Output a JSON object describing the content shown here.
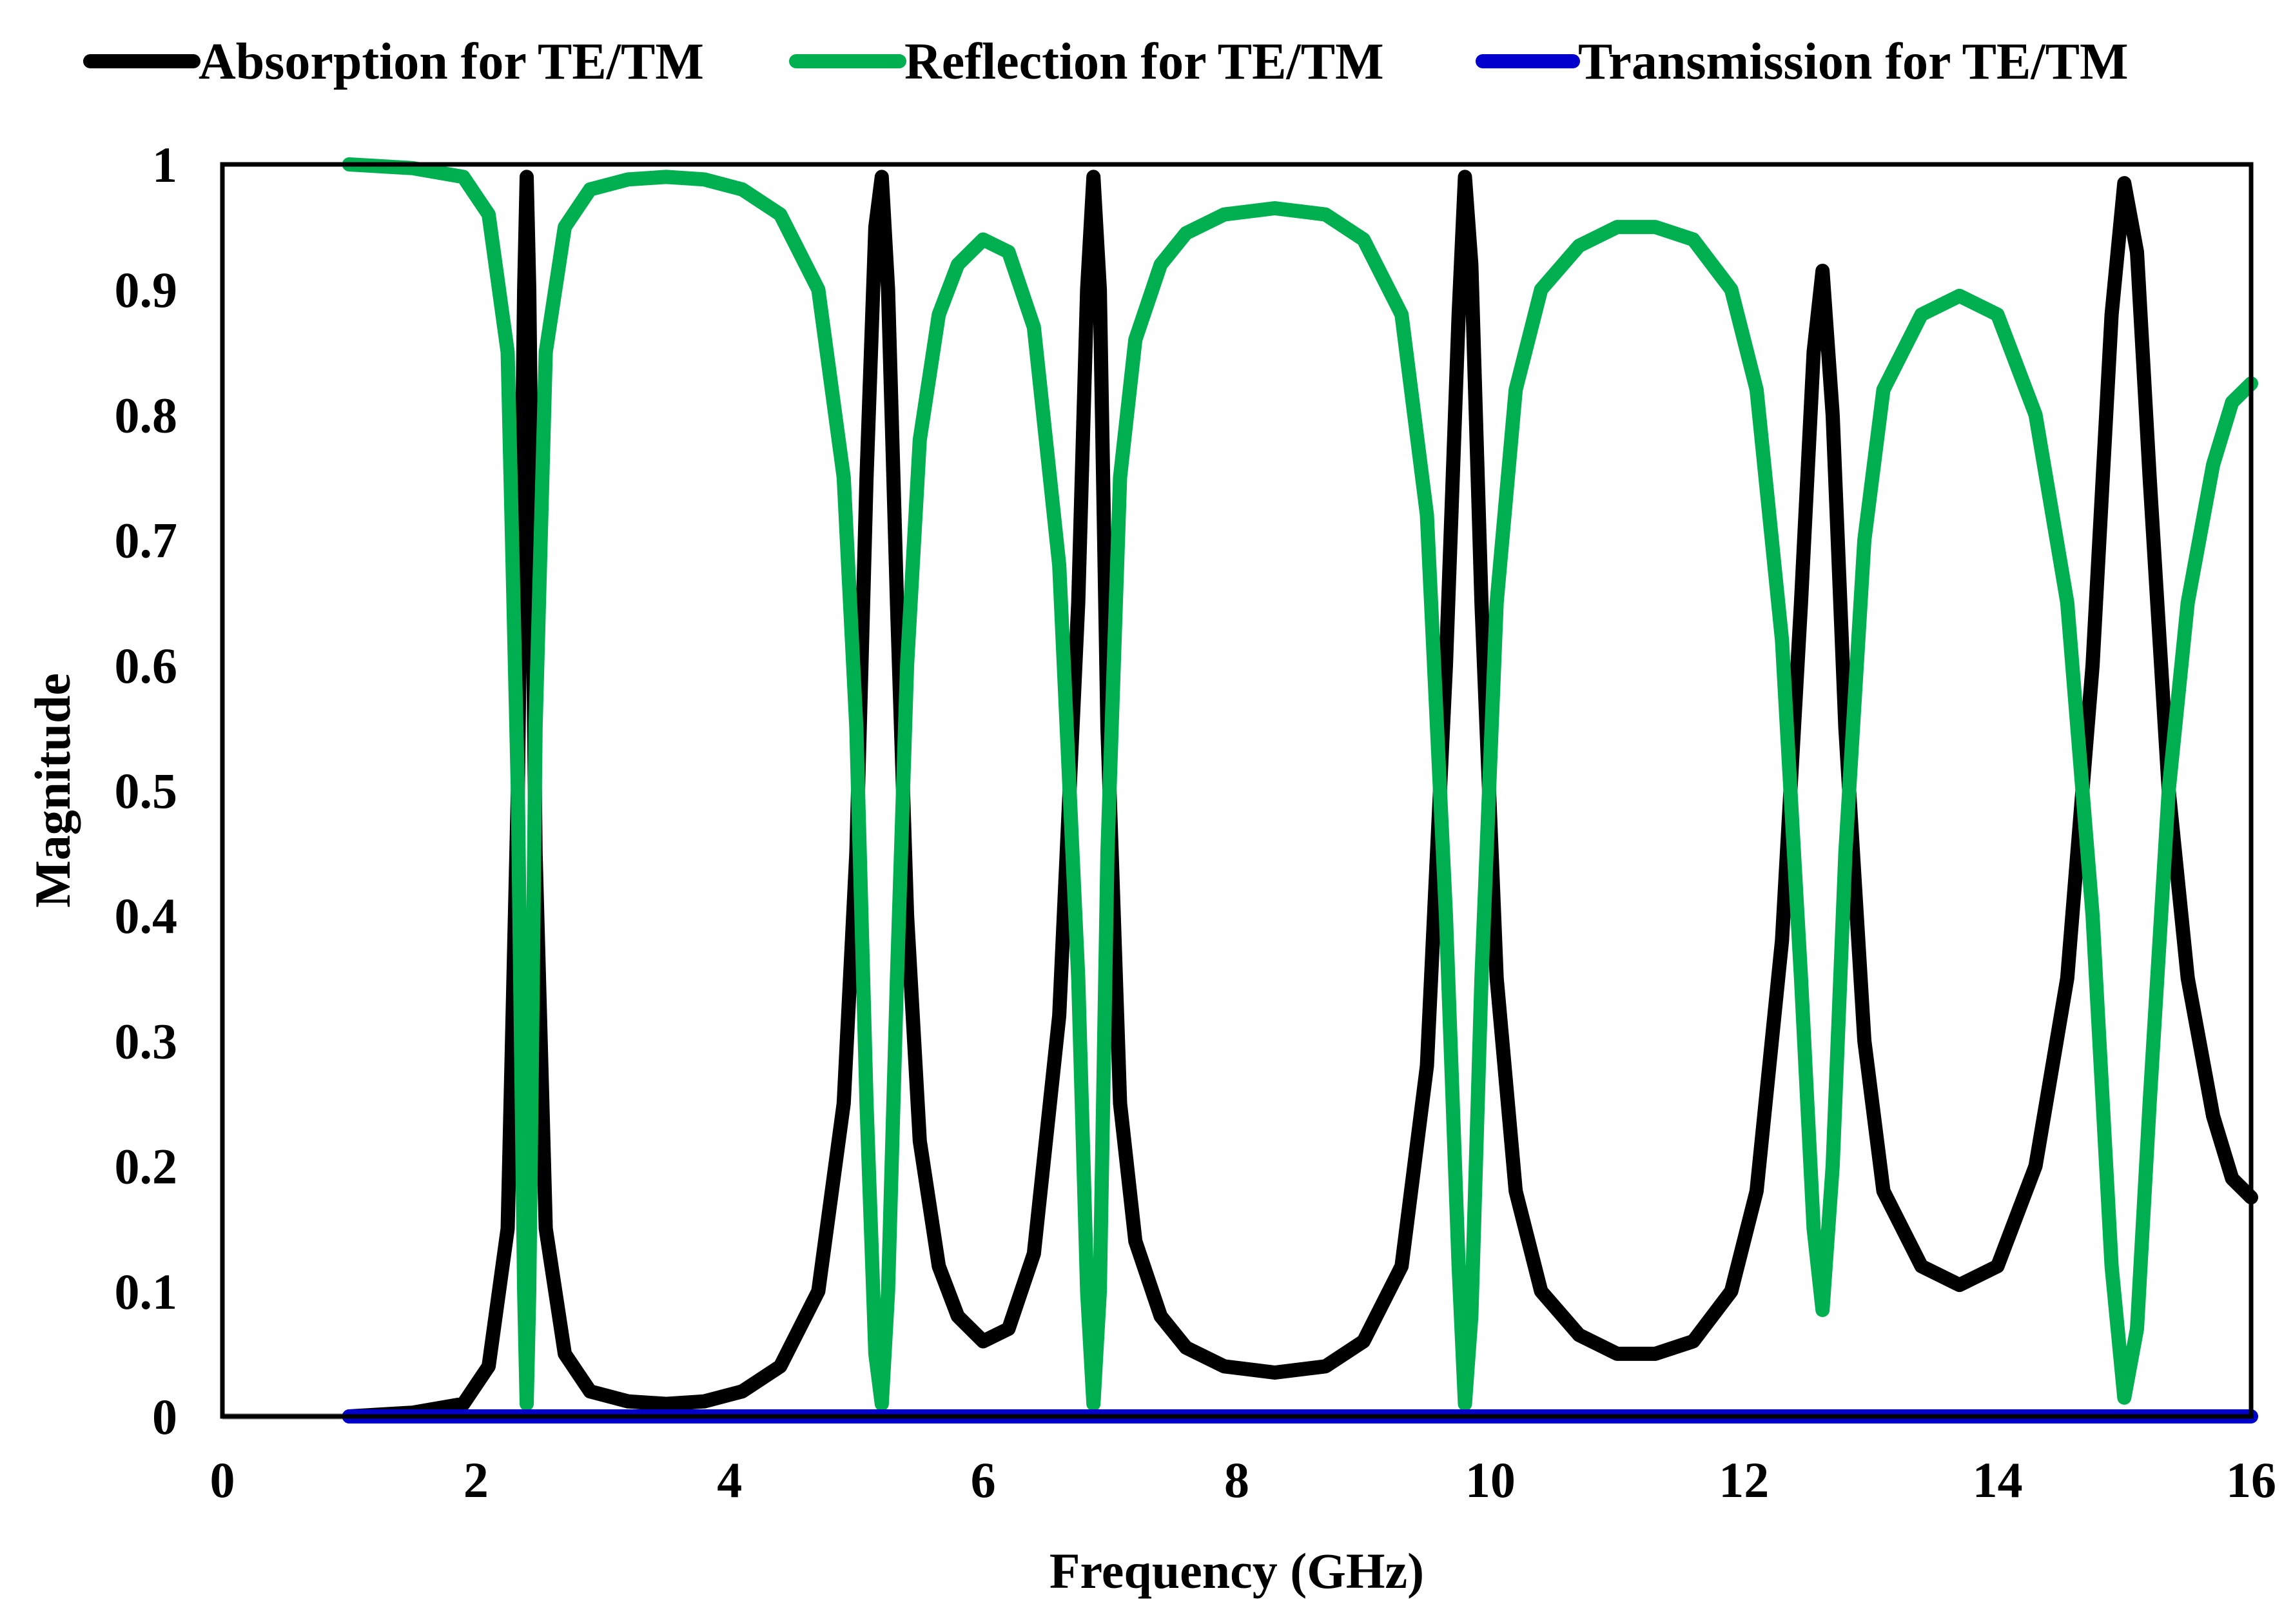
{
  "chart_data": {
    "type": "line",
    "title": "",
    "xlabel": "Frequency (GHz)",
    "ylabel": "Magnitude",
    "xlim": [
      0,
      16
    ],
    "ylim": [
      0,
      1
    ],
    "x_ticks": [
      "0",
      "2",
      "4",
      "6",
      "8",
      "10",
      "12",
      "14",
      "16"
    ],
    "y_ticks": [
      "0",
      "0.1",
      "0.2",
      "0.3",
      "0.4",
      "0.5",
      "0.6",
      "0.7",
      "0.8",
      "0.9",
      "1"
    ],
    "grid": false,
    "legend_position": "top",
    "series": [
      {
        "name": "Absorption for TE/TM",
        "color": "#000000",
        "x": [
          1.0,
          1.5,
          1.9,
          2.1,
          2.25,
          2.33,
          2.38,
          2.4,
          2.42,
          2.47,
          2.55,
          2.7,
          2.9,
          3.2,
          3.5,
          3.8,
          4.1,
          4.4,
          4.7,
          4.9,
          5.0,
          5.08,
          5.15,
          5.2,
          5.25,
          5.32,
          5.4,
          5.5,
          5.65,
          5.8,
          6.0,
          6.2,
          6.4,
          6.6,
          6.75,
          6.82,
          6.87,
          6.92,
          6.98,
          7.08,
          7.2,
          7.4,
          7.6,
          7.9,
          8.3,
          8.7,
          9.0,
          9.3,
          9.5,
          9.65,
          9.75,
          9.8,
          9.85,
          9.93,
          10.05,
          10.2,
          10.4,
          10.7,
          11.0,
          11.3,
          11.6,
          11.9,
          12.1,
          12.3,
          12.45,
          12.55,
          12.62,
          12.7,
          12.8,
          12.95,
          13.1,
          13.4,
          13.7,
          14.0,
          14.3,
          14.55,
          14.75,
          14.9,
          15.0,
          15.1,
          15.2,
          15.35,
          15.5,
          15.7,
          15.85,
          16.0
        ],
        "values": [
          0.0,
          0.003,
          0.01,
          0.04,
          0.15,
          0.5,
          0.9,
          0.99,
          0.9,
          0.45,
          0.15,
          0.05,
          0.02,
          0.012,
          0.01,
          0.012,
          0.02,
          0.04,
          0.1,
          0.25,
          0.45,
          0.75,
          0.95,
          0.99,
          0.9,
          0.65,
          0.4,
          0.22,
          0.12,
          0.08,
          0.06,
          0.07,
          0.13,
          0.32,
          0.65,
          0.9,
          0.99,
          0.9,
          0.55,
          0.25,
          0.14,
          0.08,
          0.055,
          0.04,
          0.035,
          0.04,
          0.06,
          0.12,
          0.28,
          0.6,
          0.88,
          0.99,
          0.92,
          0.65,
          0.35,
          0.18,
          0.1,
          0.065,
          0.05,
          0.05,
          0.06,
          0.1,
          0.18,
          0.38,
          0.65,
          0.85,
          0.915,
          0.8,
          0.55,
          0.3,
          0.18,
          0.12,
          0.105,
          0.12,
          0.2,
          0.35,
          0.6,
          0.88,
          0.985,
          0.93,
          0.75,
          0.5,
          0.35,
          0.24,
          0.19,
          0.175
        ]
      },
      {
        "name": "Reflection for TE/TM",
        "color": "#00b050",
        "x": [
          1.0,
          1.5,
          1.9,
          2.1,
          2.25,
          2.33,
          2.38,
          2.4,
          2.42,
          2.47,
          2.55,
          2.7,
          2.9,
          3.2,
          3.5,
          3.8,
          4.1,
          4.4,
          4.7,
          4.9,
          5.0,
          5.08,
          5.15,
          5.2,
          5.25,
          5.32,
          5.4,
          5.5,
          5.65,
          5.8,
          6.0,
          6.2,
          6.4,
          6.6,
          6.75,
          6.82,
          6.87,
          6.92,
          6.98,
          7.08,
          7.2,
          7.4,
          7.6,
          7.9,
          8.3,
          8.7,
          9.0,
          9.3,
          9.5,
          9.65,
          9.75,
          9.8,
          9.85,
          9.93,
          10.05,
          10.2,
          10.4,
          10.7,
          11.0,
          11.3,
          11.6,
          11.9,
          12.1,
          12.3,
          12.45,
          12.55,
          12.62,
          12.7,
          12.8,
          12.95,
          13.1,
          13.4,
          13.7,
          14.0,
          14.3,
          14.55,
          14.75,
          14.9,
          15.0,
          15.1,
          15.2,
          15.35,
          15.5,
          15.7,
          15.85,
          16.0
        ],
        "values": [
          1.0,
          0.997,
          0.99,
          0.96,
          0.85,
          0.5,
          0.1,
          0.01,
          0.1,
          0.55,
          0.85,
          0.95,
          0.98,
          0.988,
          0.99,
          0.988,
          0.98,
          0.96,
          0.9,
          0.75,
          0.55,
          0.25,
          0.05,
          0.01,
          0.1,
          0.35,
          0.6,
          0.78,
          0.88,
          0.92,
          0.94,
          0.93,
          0.87,
          0.68,
          0.35,
          0.1,
          0.01,
          0.1,
          0.45,
          0.75,
          0.86,
          0.92,
          0.945,
          0.96,
          0.965,
          0.96,
          0.94,
          0.88,
          0.72,
          0.4,
          0.12,
          0.01,
          0.08,
          0.35,
          0.65,
          0.82,
          0.9,
          0.935,
          0.95,
          0.95,
          0.94,
          0.9,
          0.82,
          0.62,
          0.35,
          0.15,
          0.085,
          0.2,
          0.45,
          0.7,
          0.82,
          0.88,
          0.895,
          0.88,
          0.8,
          0.65,
          0.4,
          0.12,
          0.015,
          0.07,
          0.25,
          0.5,
          0.65,
          0.76,
          0.81,
          0.825
        ]
      },
      {
        "name": "Transmission for TE/TM",
        "color": "#0000cc",
        "x": [
          1.0,
          16.0
        ],
        "values": [
          0.0,
          0.0
        ]
      }
    ]
  }
}
